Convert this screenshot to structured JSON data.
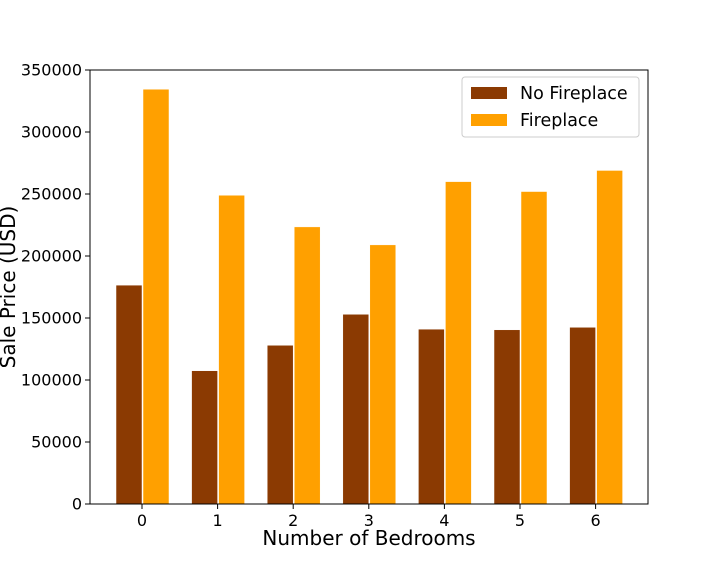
{
  "chart_data": {
    "type": "bar",
    "title": "",
    "xlabel": "Number of Bedrooms",
    "ylabel": "Sale Price (USD)",
    "categories": [
      "0",
      "1",
      "2",
      "3",
      "4",
      "5",
      "6"
    ],
    "series": [
      {
        "name": "No Fireplace",
        "color": "#8b3a02",
        "values": [
          176500,
          107500,
          128000,
          153000,
          141000,
          140500,
          142500
        ]
      },
      {
        "name": "Fireplace",
        "color": "#ffa000",
        "values": [
          334500,
          249000,
          223500,
          209000,
          260000,
          252000,
          269000
        ]
      }
    ],
    "ylim": [
      0,
      350000
    ],
    "yticks": [
      0,
      50000,
      100000,
      150000,
      200000,
      250000,
      300000,
      350000
    ],
    "grid": false,
    "legend_position": "top-right"
  }
}
